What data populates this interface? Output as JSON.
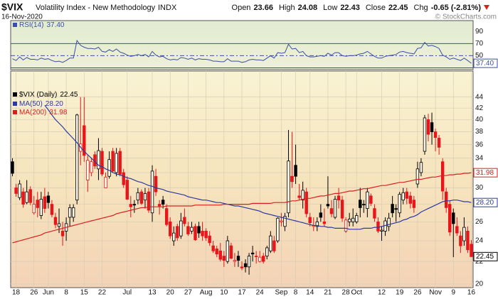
{
  "header": {
    "symbol": "$VIX",
    "name": "Volatility Index - New Methodology",
    "exchange": "INDX",
    "date": "16-Nov-2020",
    "quote": [
      {
        "label": "Open",
        "value": "23.66"
      },
      {
        "label": "High",
        "value": "24.08"
      },
      {
        "label": "Low",
        "value": "22.43"
      },
      {
        "label": "Close",
        "value": "22.45"
      },
      {
        "label": "Chg",
        "value": "-0.65 (-2.81%)"
      }
    ],
    "credit": "© StockCharts.com"
  },
  "chart_data": [
    {
      "type": "line",
      "ylim": [
        27,
        108
      ],
      "yticks": [
        50,
        70,
        90
      ],
      "reference_lines": [
        30,
        50,
        70
      ],
      "series": [
        {
          "name": "RSI(14)",
          "color": "#3a4fa8",
          "value_label": "37.40",
          "values": [
            45,
            42,
            48,
            43,
            47,
            44,
            44,
            43,
            46,
            44,
            45,
            42,
            40,
            41,
            39,
            42,
            46,
            46,
            75,
            67,
            64,
            62,
            62,
            61,
            64,
            57,
            56,
            60,
            57,
            61,
            56,
            54,
            51,
            49,
            50,
            52,
            50,
            52,
            48,
            57,
            51,
            48,
            49,
            45,
            43,
            44,
            43,
            47,
            46,
            44,
            46,
            43,
            45,
            44,
            44,
            43,
            41,
            41,
            40,
            40,
            45,
            41,
            41,
            41,
            39,
            40,
            43,
            44,
            43,
            43,
            42,
            46,
            50,
            46,
            55,
            54,
            55,
            69,
            61,
            62,
            55,
            57,
            50,
            48,
            48,
            49,
            50,
            49,
            54,
            51,
            55,
            55,
            50,
            49,
            50,
            50,
            51,
            53,
            54,
            57,
            53,
            49,
            46,
            46,
            49,
            50,
            51,
            52,
            56,
            57,
            55,
            54,
            53,
            62,
            63,
            72,
            66,
            67,
            65,
            62,
            51,
            48,
            44,
            46,
            44,
            42,
            46,
            42,
            37.4
          ]
        }
      ]
    },
    {
      "type": "candlestick",
      "log_scale": true,
      "grid": true,
      "ylim": [
        19.7,
        49.1
      ],
      "yticks": [
        20,
        22,
        24,
        26,
        28,
        30,
        32,
        34,
        36,
        38,
        40,
        42,
        44
      ],
      "name": "$VIX (Daily)",
      "value_label": "22.45",
      "up_color": "#000000",
      "down_color": "#e8151b",
      "categories": [
        null,
        "18",
        null,
        null,
        null,
        null,
        "26",
        null,
        null,
        null,
        "Jun",
        null,
        null,
        null,
        null,
        "8",
        null,
        null,
        null,
        null,
        "15",
        null,
        null,
        null,
        null,
        "22",
        null,
        null,
        null,
        null,
        null,
        null,
        "Jul",
        null,
        null,
        null,
        null,
        null,
        null,
        "13",
        null,
        null,
        null,
        null,
        "20",
        null,
        null,
        null,
        null,
        "27",
        null,
        null,
        null,
        null,
        "Aug",
        null,
        null,
        null,
        null,
        "10",
        null,
        null,
        null,
        null,
        "17",
        null,
        null,
        null,
        null,
        "24",
        null,
        null,
        null,
        null,
        null,
        "Sep",
        null,
        null,
        null,
        "8",
        null,
        null,
        null,
        "14",
        null,
        null,
        null,
        null,
        "21",
        null,
        null,
        null,
        null,
        "28",
        null,
        null,
        "Oct",
        null,
        null,
        null,
        null,
        null,
        null,
        "12",
        null,
        null,
        null,
        null,
        "19",
        null,
        null,
        null,
        null,
        "26",
        null,
        null,
        null,
        null,
        "Nov",
        null,
        null,
        null,
        null,
        "9",
        null,
        null,
        null,
        null,
        "16"
      ],
      "open": [
        33.5,
        30.0,
        28.8,
        29.5,
        28.2,
        29.8,
        27.0,
        28.5,
        26.7,
        28.9,
        29.0,
        28.0,
        26.5,
        25.5,
        25.0,
        25.0,
        26.5,
        26.5,
        28.5,
        35.0,
        39.0,
        31.0,
        32.0,
        34.5,
        32.5,
        35.0,
        30.0,
        31.5,
        35.0,
        32.0,
        35.0,
        32.0,
        31.0,
        28.0,
        28.0,
        28.5,
        29.5,
        28.5,
        29.5,
        27.0,
        31.5,
        28.0,
        28.5,
        27.5,
        26.0,
        24.0,
        25.5,
        24.5,
        26.5,
        25.5,
        25.0,
        25.5,
        25.5,
        25.0,
        25.0,
        24.5,
        23.5,
        23.2,
        23.0,
        22.5,
        22.0,
        23.5,
        22.0,
        22.5,
        21.5,
        21.8,
        21.5,
        22.8,
        22.5,
        22.0,
        22.5,
        22.5,
        23.0,
        24.0,
        24.0,
        26.0,
        25.5,
        27.0,
        31.5,
        33.0,
        29.0,
        28.5,
        29.5,
        26.5,
        25.5,
        25.5,
        27.0,
        26.0,
        28.0,
        27.5,
        26.5,
        29.0,
        28.5,
        25.0,
        26.0,
        26.0,
        26.0,
        28.5,
        28.0,
        27.5,
        29.0,
        27.5,
        26.0,
        25.0,
        25.0,
        25.5,
        28.0,
        27.5,
        27.0,
        28.5,
        29.5,
        29.0,
        28.5,
        30.5,
        32.0,
        35.0,
        40.0,
        39.5,
        38.0,
        37.0,
        33.5,
        29.5,
        28.0,
        27.0,
        25.5,
        24.5,
        24.0,
        25.0,
        23.66
      ],
      "high": [
        34.0,
        30.5,
        31.0,
        30.0,
        31.0,
        30.2,
        29.0,
        29.5,
        29.5,
        30.0,
        29.5,
        28.5,
        27.0,
        27.5,
        26.0,
        26.5,
        28.0,
        28.0,
        41.0,
        44.0,
        44.0,
        34.5,
        34.0,
        35.0,
        37.0,
        35.5,
        32.0,
        35.0,
        35.5,
        35.5,
        35.5,
        32.5,
        31.5,
        29.0,
        28.5,
        30.0,
        29.8,
        30.0,
        30.0,
        33.0,
        32.5,
        28.5,
        29.0,
        28.0,
        26.5,
        25.5,
        25.8,
        27.0,
        27.5,
        26.0,
        26.0,
        25.8,
        26.0,
        26.0,
        25.3,
        25.0,
        24.0,
        23.5,
        23.8,
        23.0,
        24.5,
        23.8,
        22.8,
        23.0,
        22.0,
        22.2,
        22.8,
        23.5,
        23.0,
        23.0,
        22.8,
        23.5,
        25.0,
        24.5,
        26.5,
        27.0,
        27.0,
        38.3,
        38.0,
        36.0,
        30.5,
        30.8,
        30.0,
        27.0,
        26.5,
        26.5,
        28.0,
        27.5,
        31.5,
        28.5,
        29.0,
        30.0,
        29.0,
        26.5,
        27.0,
        27.5,
        27.0,
        30.0,
        28.5,
        30.0,
        29.3,
        28.0,
        26.5,
        25.5,
        26.5,
        27.0,
        29.0,
        28.0,
        29.5,
        30.0,
        30.0,
        29.5,
        29.0,
        33.5,
        34.0,
        40.8,
        41.0,
        41.2,
        38.5,
        37.5,
        34.0,
        30.0,
        28.5,
        27.5,
        26.5,
        25.0,
        26.5,
        25.5,
        24.08
      ],
      "low": [
        31.5,
        28.9,
        28.5,
        27.6,
        28.0,
        27.9,
        26.8,
        26.5,
        26.3,
        27.0,
        27.5,
        26.5,
        25.3,
        24.8,
        23.5,
        24.0,
        25.5,
        26.0,
        28.0,
        33.0,
        33.5,
        29.5,
        31.5,
        32.5,
        31.0,
        31.5,
        30.0,
        31.2,
        32.0,
        31.5,
        31.5,
        30.0,
        28.5,
        26.5,
        27.0,
        28.0,
        27.9,
        27.5,
        27.0,
        26.0,
        29.0,
        26.8,
        27.5,
        25.5,
        24.2,
        23.5,
        24.0,
        24.2,
        25.5,
        24.5,
        24.7,
        24.0,
        24.3,
        24.0,
        24.0,
        23.5,
        22.8,
        22.4,
        22.0,
        21.5,
        21.8,
        22.2,
        21.5,
        21.5,
        21.2,
        21.0,
        20.8,
        22.0,
        21.8,
        21.9,
        21.8,
        22.2,
        22.8,
        22.8,
        23.8,
        25.5,
        25.0,
        26.5,
        30.0,
        30.5,
        28.5,
        27.5,
        26.5,
        25.5,
        25.0,
        25.0,
        26.0,
        25.5,
        27.5,
        26.5,
        26.3,
        27.5,
        26.0,
        24.8,
        25.5,
        25.5,
        25.8,
        26.5,
        27.0,
        26.5,
        27.8,
        26.0,
        24.8,
        24.0,
        24.5,
        25.0,
        26.5,
        26.0,
        26.5,
        28.0,
        28.0,
        27.5,
        27.0,
        30.0,
        31.5,
        34.5,
        36.5,
        36.0,
        35.0,
        34.5,
        28.5,
        27.0,
        24.5,
        22.4,
        24.5,
        22.8,
        23.5,
        22.8,
        22.43
      ],
      "close": [
        31.9,
        29.3,
        30.5,
        28.0,
        29.5,
        28.2,
        28.0,
        27.6,
        28.6,
        27.5,
        28.2,
        26.8,
        25.7,
        25.8,
        24.5,
        25.8,
        27.6,
        27.6,
        40.8,
        36.1,
        34.4,
        33.7,
        33.5,
        32.9,
        35.1,
        31.8,
        31.4,
        33.8,
        32.2,
        34.7,
        31.8,
        30.4,
        28.6,
        27.7,
        27.9,
        29.4,
        28.1,
        29.3,
        27.3,
        32.2,
        29.5,
        27.8,
        28.0,
        25.7,
        24.5,
        24.8,
        24.3,
        26.1,
        25.8,
        24.7,
        25.4,
        24.1,
        24.8,
        24.5,
        24.3,
        23.8,
        23.0,
        22.7,
        22.2,
        22.1,
        24.0,
        22.3,
        22.1,
        22.1,
        21.4,
        21.5,
        22.5,
        22.7,
        22.5,
        22.4,
        22.0,
        23.3,
        24.5,
        23.0,
        26.4,
        26.1,
        26.6,
        33.6,
        30.8,
        31.5,
        28.8,
        29.7,
        26.9,
        25.9,
        25.6,
        26.0,
        26.5,
        25.8,
        27.8,
        26.9,
        28.6,
        28.5,
        26.4,
        26.2,
        26.3,
        26.4,
        26.7,
        27.6,
        28.0,
        29.5,
        28.1,
        26.4,
        25.0,
        25.1,
        26.1,
        26.4,
        27.0,
        27.4,
        29.2,
        29.4,
        28.7,
        28.1,
        27.6,
        32.5,
        33.4,
        40.3,
        37.6,
        38.0,
        37.1,
        35.6,
        29.6,
        27.6,
        24.9,
        25.8,
        24.8,
        23.5,
        25.4,
        23.1,
        22.45
      ],
      "series": [
        {
          "name": "MA(50)",
          "color": "#2b3a9e",
          "value_label": "28.20",
          "values": [
            null,
            null,
            null,
            null,
            null,
            null,
            null,
            null,
            null,
            42.5,
            41.7,
            40.8,
            40.0,
            39.4,
            38.8,
            38.1,
            37.5,
            36.9,
            36.3,
            35.6,
            35.0,
            34.5,
            34.0,
            33.5,
            33.0,
            32.8,
            32.5,
            32.3,
            32.0,
            31.8,
            31.7,
            31.5,
            31.3,
            31.2,
            31.0,
            30.8,
            30.7,
            30.5,
            30.3,
            30.2,
            30.0,
            29.9,
            29.8,
            29.6,
            29.5,
            29.4,
            29.3,
            29.2,
            29.1,
            28.9,
            28.8,
            28.7,
            28.6,
            28.5,
            28.5,
            28.4,
            28.3,
            28.2,
            28.2,
            28.1,
            28.0,
            27.9,
            27.8,
            27.8,
            27.7,
            27.6,
            27.5,
            27.4,
            27.3,
            27.2,
            27.0,
            26.9,
            26.8,
            26.7,
            26.6,
            26.5,
            26.4,
            26.3,
            26.2,
            26.1,
            26.0,
            25.9,
            25.8,
            25.7,
            25.6,
            25.6,
            25.5,
            25.5,
            25.4,
            25.4,
            25.3,
            25.3,
            25.3,
            25.3,
            25.2,
            25.2,
            25.2,
            25.2,
            25.3,
            25.3,
            25.3,
            25.4,
            25.4,
            25.5,
            25.6,
            25.7,
            25.8,
            25.9,
            26.0,
            26.2,
            26.3,
            26.5,
            26.6,
            26.8,
            27.1,
            27.3,
            27.5,
            27.7,
            27.9,
            28.1,
            28.3,
            28.4,
            28.4,
            28.5,
            28.5,
            28.4,
            28.3,
            28.3,
            28.2
          ]
        },
        {
          "name": "MA(200)",
          "color": "#d62020",
          "value_label": "31.98",
          "values": [
            23.8,
            23.9,
            24.0,
            24.1,
            24.2,
            24.3,
            24.4,
            24.5,
            24.6,
            24.8,
            24.9,
            25.0,
            25.1,
            25.2,
            25.3,
            25.4,
            25.5,
            25.6,
            25.7,
            25.8,
            25.9,
            26.0,
            26.1,
            26.2,
            26.3,
            26.4,
            26.5,
            26.6,
            26.7,
            26.9,
            27.0,
            27.1,
            27.2,
            27.3,
            27.4,
            27.5,
            27.6,
            27.6,
            27.7,
            27.7,
            27.7,
            27.7,
            27.7,
            27.8,
            27.8,
            27.8,
            27.8,
            27.8,
            27.8,
            27.8,
            27.8,
            27.9,
            27.9,
            27.9,
            27.9,
            27.9,
            27.9,
            27.9,
            27.9,
            28.0,
            28.0,
            28.0,
            28.0,
            28.0,
            28.0,
            28.0,
            28.0,
            28.1,
            28.1,
            28.1,
            28.1,
            28.1,
            28.1,
            28.2,
            28.2,
            28.2,
            28.2,
            28.3,
            28.4,
            28.4,
            28.5,
            28.6,
            28.7,
            28.7,
            28.8,
            28.9,
            29.0,
            29.0,
            29.1,
            29.2,
            29.3,
            29.3,
            29.4,
            29.5,
            29.6,
            29.6,
            29.7,
            29.8,
            29.9,
            29.9,
            30.0,
            30.1,
            30.2,
            30.3,
            30.3,
            30.4,
            30.5,
            30.6,
            30.7,
            30.7,
            30.8,
            30.9,
            31.0,
            31.1,
            31.1,
            31.2,
            31.3,
            31.4,
            31.4,
            31.5,
            31.6,
            31.6,
            31.7,
            31.7,
            31.8,
            31.8,
            31.9,
            31.9,
            31.98
          ]
        }
      ]
    }
  ]
}
